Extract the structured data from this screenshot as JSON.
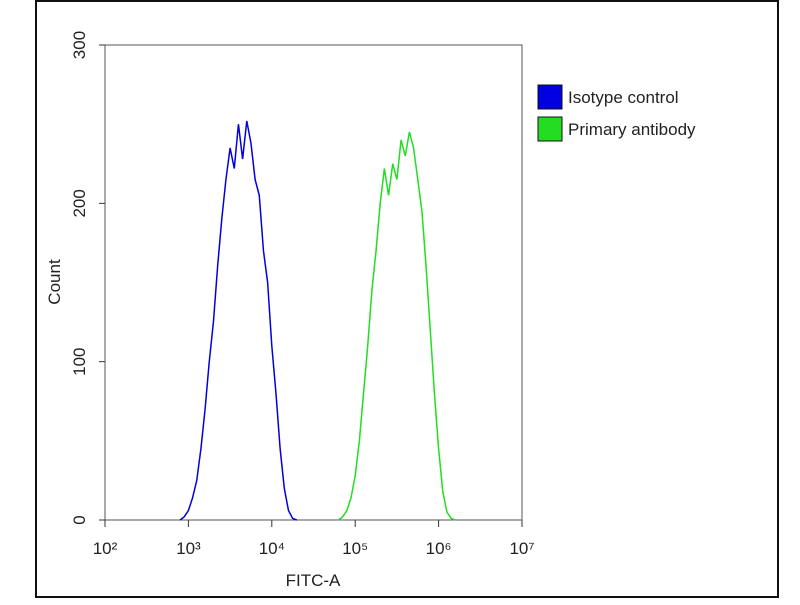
{
  "chart_data": {
    "type": "histogram-line",
    "xlabel": "FITC-A",
    "ylabel": "Count",
    "xscale": "log",
    "xlim": [
      100,
      10000000
    ],
    "xticks": [
      {
        "value": 100,
        "label": "10²"
      },
      {
        "value": 1000,
        "label": "10³"
      },
      {
        "value": 10000,
        "label": "10⁴"
      },
      {
        "value": 100000,
        "label": "10⁵"
      },
      {
        "value": 1000000,
        "label": "10⁶"
      },
      {
        "value": 10000000,
        "label": "10⁷"
      }
    ],
    "ylim": [
      0,
      300
    ],
    "yticks": [
      0,
      100,
      200,
      300
    ],
    "legend": "upper right",
    "series": [
      {
        "name": "Isotype control",
        "color": "#0000e0",
        "x": [
          794,
          891,
          1000,
          1122,
          1259,
          1413,
          1585,
          1778,
          1995,
          2239,
          2512,
          2818,
          3162,
          3548,
          3981,
          4467,
          5012,
          5623,
          6310,
          7079,
          7943,
          8913,
          10000,
          11220,
          12589,
          14125,
          15849,
          17783,
          19953
        ],
        "values": [
          0,
          2,
          6,
          14,
          25,
          45,
          70,
          100,
          125,
          160,
          190,
          215,
          235,
          222,
          250,
          228,
          252,
          238,
          215,
          205,
          170,
          150,
          110,
          80,
          45,
          20,
          6,
          1,
          0
        ]
      },
      {
        "name": "Primary antibody",
        "color": "#22dd22",
        "x": [
          63096,
          70795,
          79433,
          89125,
          100000,
          112202,
          125893,
          141254,
          158489,
          177828,
          199526,
          223872,
          251189,
          281838,
          316228,
          354813,
          398107,
          446684,
          501187,
          562341,
          630957,
          707946,
          794328,
          891251,
          1000000,
          1122018,
          1258925,
          1412538,
          1584893
        ],
        "values": [
          0,
          2,
          6,
          14,
          28,
          50,
          80,
          110,
          145,
          170,
          200,
          222,
          205,
          225,
          215,
          240,
          230,
          245,
          235,
          215,
          195,
          160,
          120,
          80,
          45,
          18,
          5,
          1,
          0
        ]
      }
    ]
  }
}
